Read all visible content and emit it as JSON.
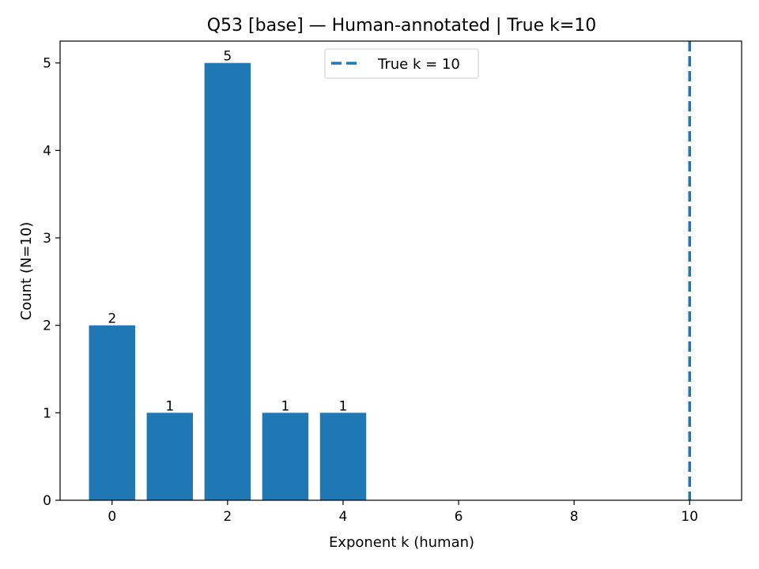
{
  "chart_data": {
    "type": "bar",
    "title": "Q53 [base] — Human-annotated | True k=10",
    "xlabel": "Exponent k (human)",
    "ylabel": "Count (N=10)",
    "x": [
      0,
      1,
      2,
      3,
      4
    ],
    "values": [
      2,
      1,
      5,
      1,
      1
    ],
    "data_labels": [
      "2",
      "1",
      "5",
      "1",
      "1"
    ],
    "xlim": [
      -0.9,
      10.9
    ],
    "ylim": [
      0,
      5.25
    ],
    "xticks": [
      0,
      2,
      4,
      6,
      8,
      10
    ],
    "yticks": [
      0,
      1,
      2,
      3,
      4,
      5
    ],
    "grid": false,
    "reference_line": {
      "x": 10,
      "style": "dashed",
      "label": "True k = 10"
    },
    "legend": {
      "placement": "upper center",
      "entries": [
        "True k = 10"
      ]
    },
    "colors": {
      "bar": "#1f77b4",
      "reference_line": "#1f77b4"
    }
  }
}
